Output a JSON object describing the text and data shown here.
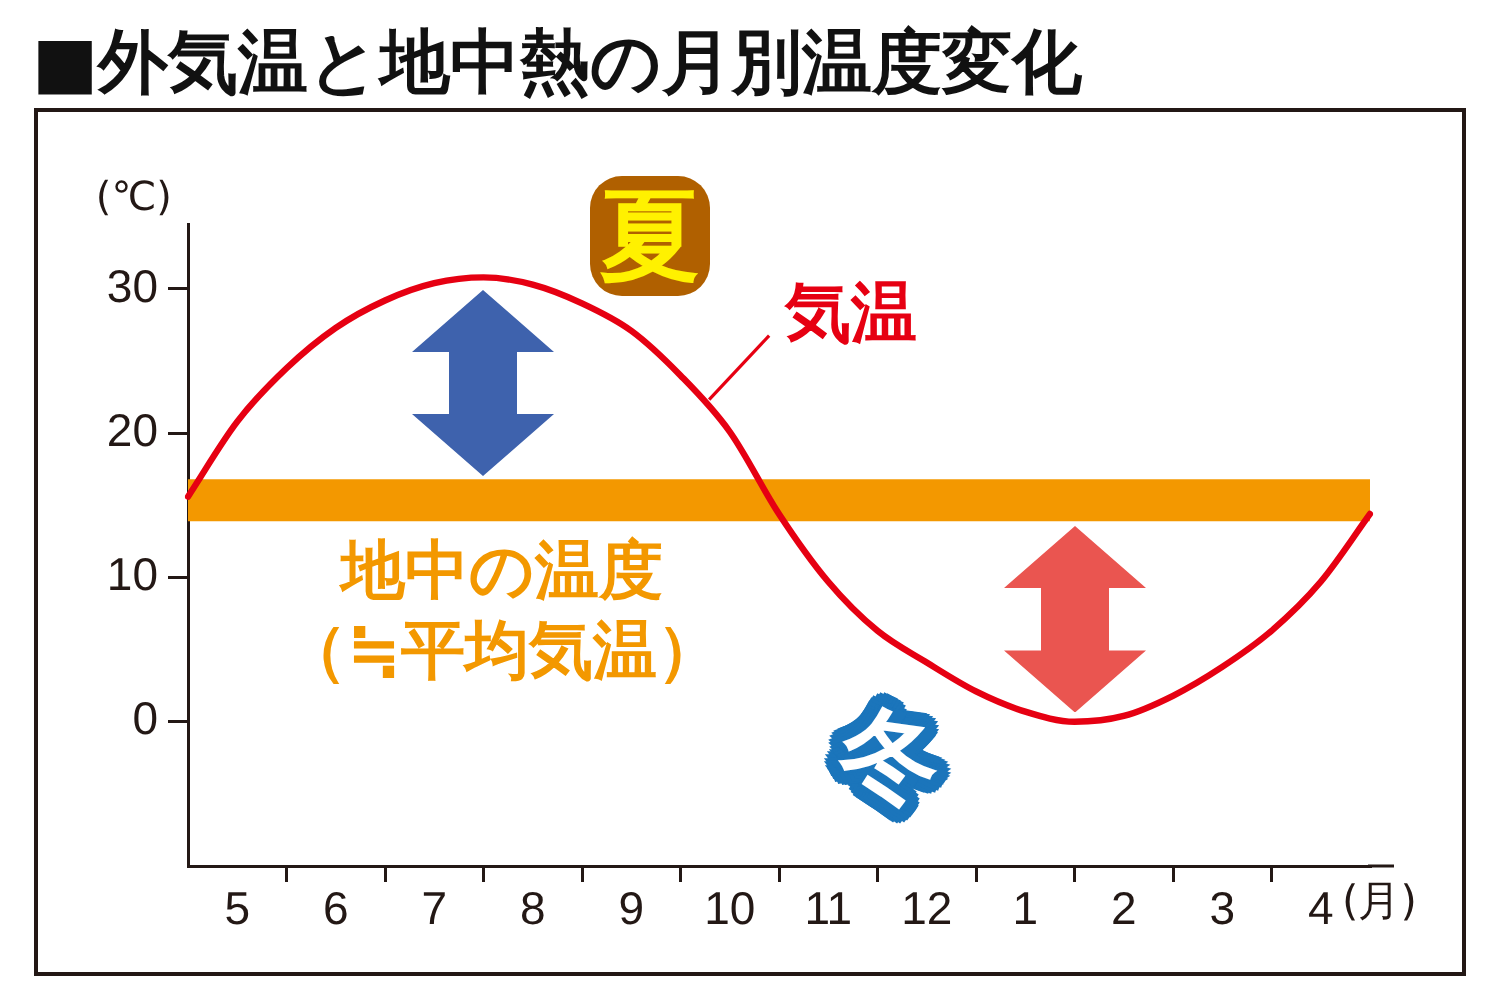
{
  "chart_data": {
    "type": "line",
    "title": "■外気温と地中熱の月別温度変化",
    "xlabel": "(月)",
    "ylabel": "(℃)",
    "categories": [
      null,
      "5",
      null,
      "6",
      null,
      "7",
      null,
      "8",
      null,
      "9",
      null,
      "10",
      null,
      "11",
      null,
      "12",
      null,
      "1",
      null,
      "2",
      null,
      "3",
      null,
      "4",
      null
    ],
    "series": [
      {
        "name": "気温",
        "color": "#e60012",
        "values": [
          15.6,
          20.8,
          24.5,
          27.3,
          29.2,
          30.4,
          30.8,
          30.3,
          29.0,
          27.1,
          24.0,
          20.1,
          14.4,
          9.7,
          6.3,
          4.1,
          2.1,
          0.7,
          0,
          0.4,
          1.8,
          3.8,
          6.3,
          9.7,
          14.4
        ]
      }
    ],
    "ylim": [
      -10,
      34.5
    ],
    "yticks": [
      0,
      10,
      20,
      30
    ],
    "bands": [
      {
        "axis": "y",
        "from": 13.9,
        "to": 16.8,
        "label": "地中の温度（≒平均気温）",
        "color": "#f39800"
      }
    ],
    "annotations": [
      "夏",
      "冬"
    ],
    "marker": "none",
    "line_style": "solid",
    "legend": false,
    "grid": false
  }
}
